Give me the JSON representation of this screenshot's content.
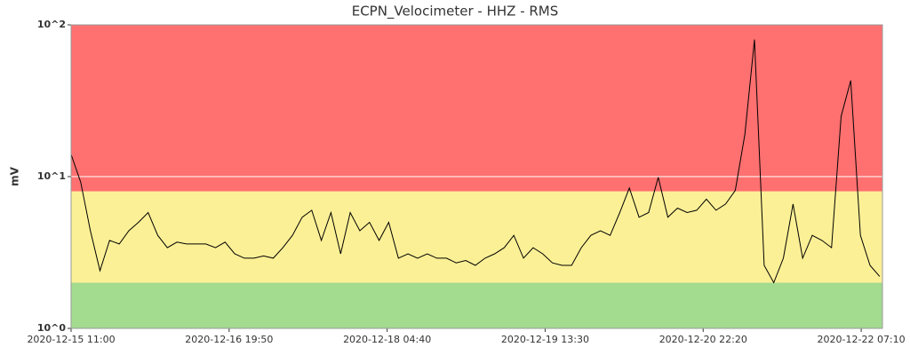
{
  "chart_data": {
    "type": "line",
    "title": "ECPN_Velocimeter - HHZ - RMS",
    "y_label": "mV",
    "log_y": true,
    "grid": true,
    "grid_color": "#ffffff",
    "line_color": "#000000",
    "ylim": [
      1,
      100
    ],
    "yticks": [
      {
        "value": 1,
        "label": "10^0"
      },
      {
        "value": 10,
        "label": "10^1"
      },
      {
        "value": 100,
        "label": "10^2"
      }
    ],
    "xlim": [
      "2020-12-15 11:00",
      "2020-12-22 11:35"
    ],
    "xticks": [
      "2020-12-15 11:00",
      "2020-12-16 19:50",
      "2020-12-18 04:40",
      "2020-12-19 13:30",
      "2020-12-20 22:20",
      "2020-12-22 07:10"
    ],
    "bands": [
      {
        "from": 1,
        "to": 2,
        "color": "#a3db8f"
      },
      {
        "from": 2,
        "to": 8,
        "color": "#fcf096"
      },
      {
        "from": 8,
        "to": 100,
        "color": "#ff7070"
      }
    ],
    "x": [
      "2020-12-15 11:00",
      "2020-12-15 13:00",
      "2020-12-15 15:00",
      "2020-12-15 17:00",
      "2020-12-15 19:00",
      "2020-12-15 21:00",
      "2020-12-15 23:00",
      "2020-12-16 01:00",
      "2020-12-16 03:00",
      "2020-12-16 05:00",
      "2020-12-16 07:00",
      "2020-12-16 09:00",
      "2020-12-16 11:00",
      "2020-12-16 13:00",
      "2020-12-16 15:00",
      "2020-12-16 17:00",
      "2020-12-16 19:00",
      "2020-12-16 21:00",
      "2020-12-16 23:00",
      "2020-12-17 01:00",
      "2020-12-17 03:00",
      "2020-12-17 05:00",
      "2020-12-17 07:00",
      "2020-12-17 09:00",
      "2020-12-17 11:00",
      "2020-12-17 13:00",
      "2020-12-17 15:00",
      "2020-12-17 17:00",
      "2020-12-17 19:00",
      "2020-12-17 21:00",
      "2020-12-17 23:00",
      "2020-12-18 01:00",
      "2020-12-18 03:00",
      "2020-12-18 05:00",
      "2020-12-18 07:00",
      "2020-12-18 09:00",
      "2020-12-18 11:00",
      "2020-12-18 13:00",
      "2020-12-18 15:00",
      "2020-12-18 17:00",
      "2020-12-18 19:00",
      "2020-12-18 21:00",
      "2020-12-18 23:00",
      "2020-12-19 01:00",
      "2020-12-19 03:00",
      "2020-12-19 05:00",
      "2020-12-19 07:00",
      "2020-12-19 09:00",
      "2020-12-19 11:00",
      "2020-12-19 13:00",
      "2020-12-19 15:00",
      "2020-12-19 17:00",
      "2020-12-19 19:00",
      "2020-12-19 21:00",
      "2020-12-19 23:00",
      "2020-12-20 01:00",
      "2020-12-20 03:00",
      "2020-12-20 05:00",
      "2020-12-20 07:00",
      "2020-12-20 09:00",
      "2020-12-20 11:00",
      "2020-12-20 13:00",
      "2020-12-20 15:00",
      "2020-12-20 17:00",
      "2020-12-20 19:00",
      "2020-12-20 21:00",
      "2020-12-20 23:00",
      "2020-12-21 01:00",
      "2020-12-21 03:00",
      "2020-12-21 05:00",
      "2020-12-21 07:00",
      "2020-12-21 09:00",
      "2020-12-21 11:00",
      "2020-12-21 13:00",
      "2020-12-21 15:00",
      "2020-12-21 17:00",
      "2020-12-21 19:00",
      "2020-12-21 21:00",
      "2020-12-21 23:00",
      "2020-12-22 01:00",
      "2020-12-22 03:00",
      "2020-12-22 05:00",
      "2020-12-22 07:00",
      "2020-12-22 09:00",
      "2020-12-22 11:00"
    ],
    "values": [
      14,
      9.2,
      4.4,
      2.4,
      3.8,
      3.6,
      4.4,
      5.0,
      5.8,
      4.1,
      3.4,
      3.7,
      3.6,
      3.6,
      3.6,
      3.4,
      3.7,
      3.1,
      2.9,
      2.9,
      3.0,
      2.9,
      3.4,
      4.1,
      5.4,
      6.0,
      3.8,
      5.8,
      3.1,
      5.8,
      4.4,
      5.0,
      3.8,
      5.0,
      2.9,
      3.1,
      2.9,
      3.1,
      2.9,
      2.9,
      2.7,
      2.8,
      2.6,
      2.9,
      3.1,
      3.4,
      4.1,
      2.9,
      3.4,
      3.1,
      2.7,
      2.6,
      2.6,
      3.4,
      4.1,
      4.4,
      4.1,
      5.8,
      8.4,
      5.4,
      5.8,
      9.9,
      5.4,
      6.2,
      5.8,
      6.0,
      7.1,
      6.0,
      6.6,
      8.1,
      19,
      80,
      2.6,
      2.0,
      2.9,
      6.6,
      2.9,
      4.1,
      3.8,
      3.4,
      25,
      43,
      4.1,
      2.6,
      2.2
    ]
  }
}
